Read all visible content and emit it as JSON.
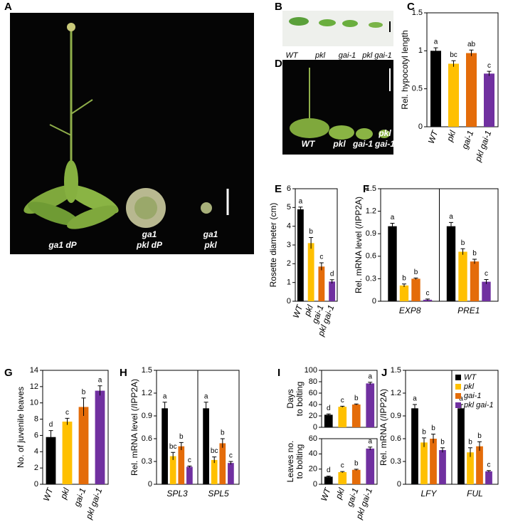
{
  "panel_labels": [
    "A",
    "B",
    "C",
    "D",
    "E",
    "F",
    "G",
    "H",
    "I",
    "J"
  ],
  "photos": {
    "A": [
      [
        "ga1 dP"
      ],
      [
        "ga1",
        "pkl dP"
      ],
      [
        "ga1",
        "pkl"
      ]
    ],
    "B": [
      [
        "WT"
      ],
      [
        "pkl"
      ],
      [
        "gai-1"
      ],
      [
        "pkl gai-1"
      ]
    ],
    "D": [
      [
        "WT"
      ],
      [
        "pkl"
      ],
      [
        "gai-1"
      ],
      [
        "pkl",
        "gai-1"
      ]
    ]
  },
  "chart_data": [
    {
      "type": "bar",
      "y_label": "Rel. hypocotyl length",
      "categories": [
        "WT",
        "pkl",
        "gai-1",
        "pkl gai-1"
      ],
      "values": [
        1.0,
        0.83,
        0.97,
        0.7
      ],
      "errors": [
        0.04,
        0.04,
        0.04,
        0.03
      ],
      "letters": [
        "a",
        "bc",
        "ab",
        "c"
      ],
      "colors": [
        "#000000",
        "#ffc000",
        "#e46c0a",
        "#7030a0"
      ],
      "ylim": [
        0,
        1.5
      ],
      "yticks": [
        0,
        0.5,
        1,
        1.5
      ]
    },
    {
      "type": "bar",
      "y_label": "Rosette diameter (cm)",
      "categories": [
        "WT",
        "pkl",
        "gai-1",
        "pkl gai-1"
      ],
      "values": [
        4.9,
        3.1,
        1.85,
        1.05
      ],
      "errors": [
        0.12,
        0.3,
        0.2,
        0.1
      ],
      "letters": [
        "a",
        "b",
        "c",
        "d"
      ],
      "colors": [
        "#000000",
        "#ffc000",
        "#e46c0a",
        "#7030a0"
      ],
      "ylim": [
        0,
        6
      ],
      "yticks": [
        0,
        1,
        2,
        3,
        4,
        5,
        6
      ]
    },
    {
      "type": "grouped-bar",
      "y_label": "Rel. mRNA level (/IPP2A)",
      "categories": [
        "EXP8",
        "PRE1"
      ],
      "series": [
        {
          "color": "#000000",
          "values": [
            1.0,
            1.0
          ],
          "errors": [
            0.04,
            0.05
          ],
          "letters": [
            "a",
            "a"
          ]
        },
        {
          "color": "#ffc000",
          "values": [
            0.21,
            0.66
          ],
          "errors": [
            0.02,
            0.04
          ],
          "letters": [
            "b",
            "b"
          ]
        },
        {
          "color": "#e46c0a",
          "values": [
            0.3,
            0.53
          ],
          "errors": [
            0.01,
            0.03
          ],
          "letters": [
            "b",
            "b"
          ]
        },
        {
          "color": "#7030a0",
          "values": [
            0.02,
            0.26
          ],
          "errors": [
            0.01,
            0.03
          ],
          "letters": [
            "c",
            "c"
          ]
        }
      ],
      "ylim": [
        0,
        1.5
      ],
      "yticks": [
        0,
        0.3,
        0.6,
        0.9,
        1.2,
        1.5
      ]
    },
    {
      "type": "bar",
      "y_label": "No. of juvenile leaves",
      "categories": [
        "WT",
        "pkl",
        "gai-1",
        "pkl gai-1"
      ],
      "values": [
        5.8,
        7.7,
        9.5,
        11.5
      ],
      "errors": [
        0.8,
        0.4,
        1.1,
        0.6
      ],
      "letters": [
        "d",
        "c",
        "b",
        "a"
      ],
      "colors": [
        "#000000",
        "#ffc000",
        "#e46c0a",
        "#7030a0"
      ],
      "ylim": [
        0,
        14
      ],
      "yticks": [
        0,
        2,
        4,
        6,
        8,
        10,
        12,
        14
      ]
    },
    {
      "type": "grouped-bar",
      "y_label": "Rel. mRNA level (/IPP2A)",
      "categories": [
        "SPL3",
        "SPL5"
      ],
      "series": [
        {
          "color": "#000000",
          "values": [
            1.0,
            1.0
          ],
          "errors": [
            0.08,
            0.08
          ],
          "letters": [
            "a",
            "a"
          ]
        },
        {
          "color": "#ffc000",
          "values": [
            0.37,
            0.32
          ],
          "errors": [
            0.05,
            0.04
          ],
          "letters": [
            "bc",
            "bc"
          ]
        },
        {
          "color": "#e46c0a",
          "values": [
            0.5,
            0.54
          ],
          "errors": [
            0.05,
            0.06
          ],
          "letters": [
            "b",
            "b"
          ]
        },
        {
          "color": "#7030a0",
          "values": [
            0.23,
            0.28
          ],
          "errors": [
            0.01,
            0.02
          ],
          "letters": [
            "c",
            "c"
          ]
        }
      ],
      "ylim": [
        0,
        1.5
      ],
      "yticks": [
        0,
        0.3,
        0.6,
        0.9,
        1.2,
        1.5
      ]
    },
    {
      "type": "bar",
      "y_label": [
        "Days",
        "to bolting"
      ],
      "values": [
        22,
        36,
        40,
        77
      ],
      "errors": [
        1.5,
        1,
        1,
        2
      ],
      "letters": [
        "d",
        "c",
        "b",
        "a"
      ],
      "colors": [
        "#000000",
        "#ffc000",
        "#e46c0a",
        "#7030a0"
      ],
      "ylim": [
        0,
        100
      ],
      "yticks": [
        0,
        20,
        40,
        60,
        80,
        100
      ]
    },
    {
      "type": "bar",
      "y_label": [
        "Leaves no.",
        "to bolting"
      ],
      "categories": [
        "WT",
        "pkl",
        "gai-1",
        "pkl gai-1"
      ],
      "values": [
        10,
        16,
        19,
        47
      ],
      "errors": [
        0.8,
        0.8,
        0.8,
        2
      ],
      "letters": [
        "d",
        "c",
        "b",
        "a"
      ],
      "colors": [
        "#000000",
        "#ffc000",
        "#e46c0a",
        "#7030a0"
      ],
      "ylim": [
        0,
        60
      ],
      "yticks": [
        0,
        20,
        40,
        60
      ]
    },
    {
      "type": "grouped-bar",
      "y_label": "Rel. mRNA (/IPP2A)",
      "categories": [
        "LFY",
        "FUL"
      ],
      "legend": "upper right",
      "series": [
        {
          "name": "WT",
          "color": "#000000",
          "values": [
            1.0,
            1.0
          ],
          "errors": [
            0.05,
            0.05
          ],
          "letters": [
            "a",
            "a"
          ]
        },
        {
          "name": "pkl",
          "color": "#ffc000",
          "values": [
            0.55,
            0.42
          ],
          "errors": [
            0.06,
            0.06
          ],
          "letters": [
            "b",
            "b"
          ]
        },
        {
          "name": "gai-1",
          "color": "#e46c0a",
          "values": [
            0.6,
            0.5
          ],
          "errors": [
            0.06,
            0.06
          ],
          "letters": [
            "b",
            "b"
          ]
        },
        {
          "name": "pkl gai-1",
          "color": "#7030a0",
          "values": [
            0.45,
            0.17
          ],
          "errors": [
            0.03,
            0.01
          ],
          "letters": [
            "b",
            "c"
          ]
        }
      ],
      "ylim": [
        0,
        1.5
      ],
      "yticks": [
        0,
        0.3,
        0.6,
        0.9,
        1.2,
        1.5
      ]
    }
  ]
}
